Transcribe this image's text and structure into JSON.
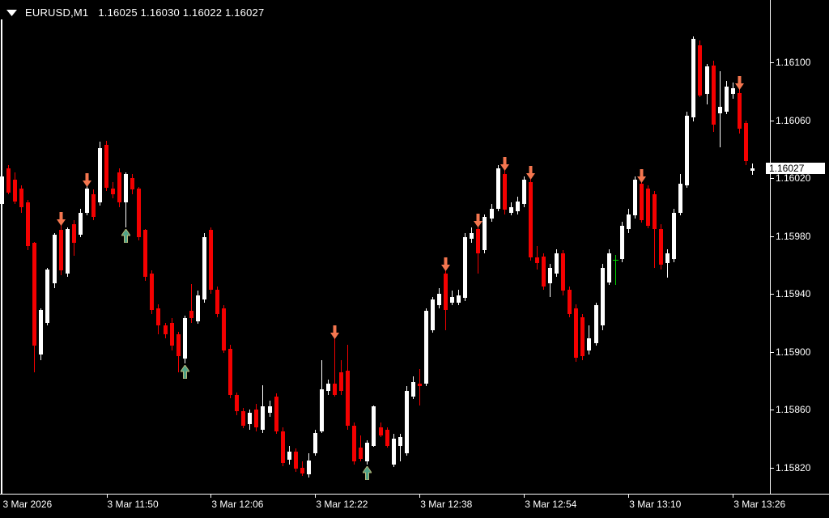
{
  "header": {
    "symbol_period": "EURUSD,M1",
    "ohlc": "1.16025 1.16030 1.16022 1.16027"
  },
  "colors": {
    "background": "#000000",
    "bull": "#FFFFFF",
    "bear": "#F40000",
    "doji": "#00DD00",
    "arrow_down": "#F4764F",
    "arrow_up_fill": "#4FA287",
    "arrow_up_stroke": "#B8B878",
    "axis_text": "#FFFFFF",
    "border": "#FFFFFF",
    "price_box_bg": "#FFFFFF",
    "price_box_text": "#000000"
  },
  "price_axis": {
    "labels": [
      "1.16100",
      "1.16060",
      "1.16020",
      "1.15980",
      "1.15940",
      "1.15900",
      "1.15860",
      "1.15820"
    ],
    "current_price": "1.16027"
  },
  "time_axis": {
    "labels": [
      {
        "bar": 0,
        "text": "3 Mar 2026"
      },
      {
        "bar": 16,
        "text": "3 Mar 11:50"
      },
      {
        "bar": 32,
        "text": "3 Mar 12:06"
      },
      {
        "bar": 48,
        "text": "3 Mar 12:22"
      },
      {
        "bar": 64,
        "text": "3 Mar 12:38"
      },
      {
        "bar": 80,
        "text": "3 Mar 12:54"
      },
      {
        "bar": 96,
        "text": "3 Mar 13:10"
      },
      {
        "bar": 112,
        "text": "3 Mar 13:26"
      }
    ]
  },
  "chart_data": {
    "type": "candlestick",
    "title": "EURUSD,M1",
    "symbol": "EURUSD",
    "timeframe": "M1",
    "y_axis_range": [
      1.15802,
      1.1613
    ],
    "grid": false,
    "ohlc": [
      [
        1.16002,
        1.16023,
        1.16,
        1.16021
      ],
      [
        1.16027,
        1.16029,
        1.16009,
        1.1601
      ],
      [
        1.16019,
        1.16024,
        1.16002,
        1.16004
      ],
      [
        1.16013,
        1.16015,
        1.15996,
        1.16
      ],
      [
        1.16003,
        1.16005,
        1.1597,
        1.15973
      ],
      [
        1.15975,
        1.15976,
        1.15886,
        1.15904
      ],
      [
        1.15898,
        1.1593,
        1.15894,
        1.15929
      ],
      [
        1.1592,
        1.15958,
        1.15918,
        1.15957
      ],
      [
        1.15947,
        1.15982,
        1.15944,
        1.15981
      ],
      [
        1.15984,
        1.15988,
        1.15953,
        1.15956
      ],
      [
        1.15954,
        1.15986,
        1.15952,
        1.15985
      ],
      [
        1.15988,
        1.15991,
        1.15966,
        1.15975
      ],
      [
        1.15981,
        1.15999,
        1.15979,
        1.15996
      ],
      [
        1.15996,
        1.16015,
        1.15994,
        1.16013
      ],
      [
        1.16009,
        1.16012,
        1.15991,
        1.15993
      ],
      [
        1.16003,
        1.16045,
        1.16001,
        1.16041
      ],
      [
        1.16043,
        1.16046,
        1.16011,
        1.16013
      ],
      [
        1.16013,
        1.16017,
        1.16006,
        1.16009
      ],
      [
        1.16024,
        1.16027,
        1.16,
        1.16003
      ],
      [
        1.16003,
        1.16024,
        1.15986,
        1.16023
      ],
      [
        1.1602,
        1.16023,
        1.16009,
        1.16012
      ],
      [
        1.16013,
        1.16014,
        1.15977,
        1.15979
      ],
      [
        1.15984,
        1.15985,
        1.15949,
        1.15952
      ],
      [
        1.15954,
        1.15956,
        1.15926,
        1.15929
      ],
      [
        1.1593,
        1.15933,
        1.15912,
        1.15918
      ],
      [
        1.15918,
        1.1592,
        1.15909,
        1.15912
      ],
      [
        1.1592,
        1.15923,
        1.15901,
        1.15904
      ],
      [
        1.15912,
        1.15914,
        1.15886,
        1.15897
      ],
      [
        1.15895,
        1.15925,
        1.15892,
        1.15923
      ],
      [
        1.15928,
        1.15947,
        1.1592,
        1.15923
      ],
      [
        1.15921,
        1.15942,
        1.15919,
        1.15939
      ],
      [
        1.15936,
        1.15982,
        1.15934,
        1.15979
      ],
      [
        1.15984,
        1.15986,
        1.1594,
        1.15943
      ],
      [
        1.15943,
        1.15945,
        1.15924,
        1.15926
      ],
      [
        1.1593,
        1.15932,
        1.15899,
        1.15901
      ],
      [
        1.15902,
        1.15905,
        1.15868,
        1.1587
      ],
      [
        1.1587,
        1.15872,
        1.15856,
        1.15859
      ],
      [
        1.15859,
        1.15861,
        1.15847,
        1.15849
      ],
      [
        1.1585,
        1.1586,
        1.15846,
        1.15858
      ],
      [
        1.1586,
        1.15864,
        1.15845,
        1.15848
      ],
      [
        1.15846,
        1.15877,
        1.15844,
        1.15862
      ],
      [
        1.15858,
        1.15866,
        1.15855,
        1.15862
      ],
      [
        1.15869,
        1.15871,
        1.15843,
        1.15845
      ],
      [
        1.15845,
        1.15848,
        1.15821,
        1.15823
      ],
      [
        1.15825,
        1.15835,
        1.15822,
        1.15831
      ],
      [
        1.15831,
        1.15833,
        1.15817,
        1.15819
      ],
      [
        1.1582,
        1.15824,
        1.15814,
        1.15816
      ],
      [
        1.15815,
        1.1583,
        1.15813,
        1.15825
      ],
      [
        1.1583,
        1.15846,
        1.15828,
        1.15844
      ],
      [
        1.15845,
        1.15894,
        1.15844,
        1.15874
      ],
      [
        1.15873,
        1.15881,
        1.1587,
        1.15878
      ],
      [
        1.15878,
        1.1591,
        1.15869,
        1.1587
      ],
      [
        1.15886,
        1.15894,
        1.1587,
        1.15873
      ],
      [
        1.15887,
        1.15905,
        1.15846,
        1.15849
      ],
      [
        1.15849,
        1.15851,
        1.15822,
        1.15824
      ],
      [
        1.15834,
        1.15842,
        1.15824,
        1.15826
      ],
      [
        1.15824,
        1.15839,
        1.15822,
        1.15837
      ],
      [
        1.15835,
        1.15863,
        1.15834,
        1.15862
      ],
      [
        1.15848,
        1.15851,
        1.15841,
        1.15842
      ],
      [
        1.15846,
        1.15848,
        1.15834,
        1.15835
      ],
      [
        1.15822,
        1.15843,
        1.1582,
        1.1584
      ],
      [
        1.15835,
        1.15843,
        1.15824,
        1.15841
      ],
      [
        1.1583,
        1.15876,
        1.15828,
        1.15873
      ],
      [
        1.15869,
        1.15883,
        1.15867,
        1.15879
      ],
      [
        1.15878,
        1.15888,
        1.15863,
        1.15876
      ],
      [
        1.15878,
        1.1593,
        1.15876,
        1.15928
      ],
      [
        1.15915,
        1.15938,
        1.15913,
        1.15936
      ],
      [
        1.15932,
        1.15944,
        1.1593,
        1.1594
      ],
      [
        1.15954,
        1.15957,
        1.15915,
        1.15929
      ],
      [
        1.15934,
        1.15942,
        1.15932,
        1.15938
      ],
      [
        1.15934,
        1.15943,
        1.15932,
        1.15939
      ],
      [
        1.15937,
        1.15982,
        1.15935,
        1.15979
      ],
      [
        1.15978,
        1.15986,
        1.15975,
        1.15982
      ],
      [
        1.15985,
        1.15987,
        1.15954,
        1.15968
      ],
      [
        1.1597,
        1.15995,
        1.15968,
        1.15993
      ],
      [
        1.15992,
        1.16002,
        1.1599,
        1.15999
      ],
      [
        1.15999,
        1.16029,
        1.15997,
        1.16027
      ],
      [
        1.16023,
        1.16026,
        1.15995,
        1.15998
      ],
      [
        1.15996,
        1.16003,
        1.15994,
        1.16
      ],
      [
        1.15997,
        1.16007,
        1.15995,
        1.16004
      ],
      [
        1.16002,
        1.16021,
        1.16,
        1.16019
      ],
      [
        1.16017,
        1.1602,
        1.15963,
        1.15965
      ],
      [
        1.15965,
        1.15973,
        1.15957,
        1.15961
      ],
      [
        1.15966,
        1.15968,
        1.15943,
        1.15945
      ],
      [
        1.15947,
        1.15961,
        1.15938,
        1.15958
      ],
      [
        1.15954,
        1.15971,
        1.15952,
        1.15968
      ],
      [
        1.15968,
        1.1597,
        1.15939,
        1.15942
      ],
      [
        1.15943,
        1.15945,
        1.15924,
        1.15926
      ],
      [
        1.1593,
        1.15933,
        1.15893,
        1.15896
      ],
      [
        1.15924,
        1.15926,
        1.15894,
        1.15897
      ],
      [
        1.15901,
        1.15918,
        1.15898,
        1.15909
      ],
      [
        1.15906,
        1.15934,
        1.15904,
        1.15932
      ],
      [
        1.15918,
        1.15961,
        1.15915,
        1.15958
      ],
      [
        1.15948,
        1.15971,
        1.15946,
        1.15968
      ],
      [
        1.15963,
        1.15967,
        1.15946,
        1.15963
      ],
      [
        1.15964,
        1.1599,
        1.15962,
        1.15987
      ],
      [
        1.15985,
        1.15999,
        1.15982,
        1.15995
      ],
      [
        1.15994,
        1.16021,
        1.15992,
        1.16019
      ],
      [
        1.16016,
        1.16018,
        1.15989,
        1.15991
      ],
      [
        1.16013,
        1.16015,
        1.15985,
        1.15987
      ],
      [
        1.16009,
        1.16011,
        1.15958,
        1.15985
      ],
      [
        1.15985,
        1.15988,
        1.15957,
        1.1596
      ],
      [
        1.15961,
        1.15971,
        1.15951,
        1.15968
      ],
      [
        1.15964,
        1.15999,
        1.15962,
        1.15996
      ],
      [
        1.15996,
        1.16023,
        1.15994,
        1.16016
      ],
      [
        1.16015,
        1.16066,
        1.16013,
        1.16063
      ],
      [
        1.16062,
        1.16118,
        1.16059,
        1.16116
      ],
      [
        1.16112,
        1.16115,
        1.16076,
        1.16077
      ],
      [
        1.16078,
        1.16099,
        1.16071,
        1.16097
      ],
      [
        1.16098,
        1.16101,
        1.16052,
        1.16057
      ],
      [
        1.16065,
        1.16094,
        1.16041,
        1.16069
      ],
      [
        1.16066,
        1.16087,
        1.16064,
        1.16083
      ],
      [
        1.16078,
        1.16086,
        1.16075,
        1.16082
      ],
      [
        1.16079,
        1.16082,
        1.16051,
        1.16054
      ],
      [
        1.16058,
        1.1606,
        1.16029,
        1.16032
      ],
      [
        1.16025,
        1.1603,
        1.16022,
        1.16027
      ]
    ],
    "signals": {
      "sell_arrow_bars": [
        9,
        13,
        51,
        68,
        73,
        77,
        81,
        98,
        113
      ],
      "buy_arrow_bars": [
        19,
        28,
        56
      ]
    }
  }
}
